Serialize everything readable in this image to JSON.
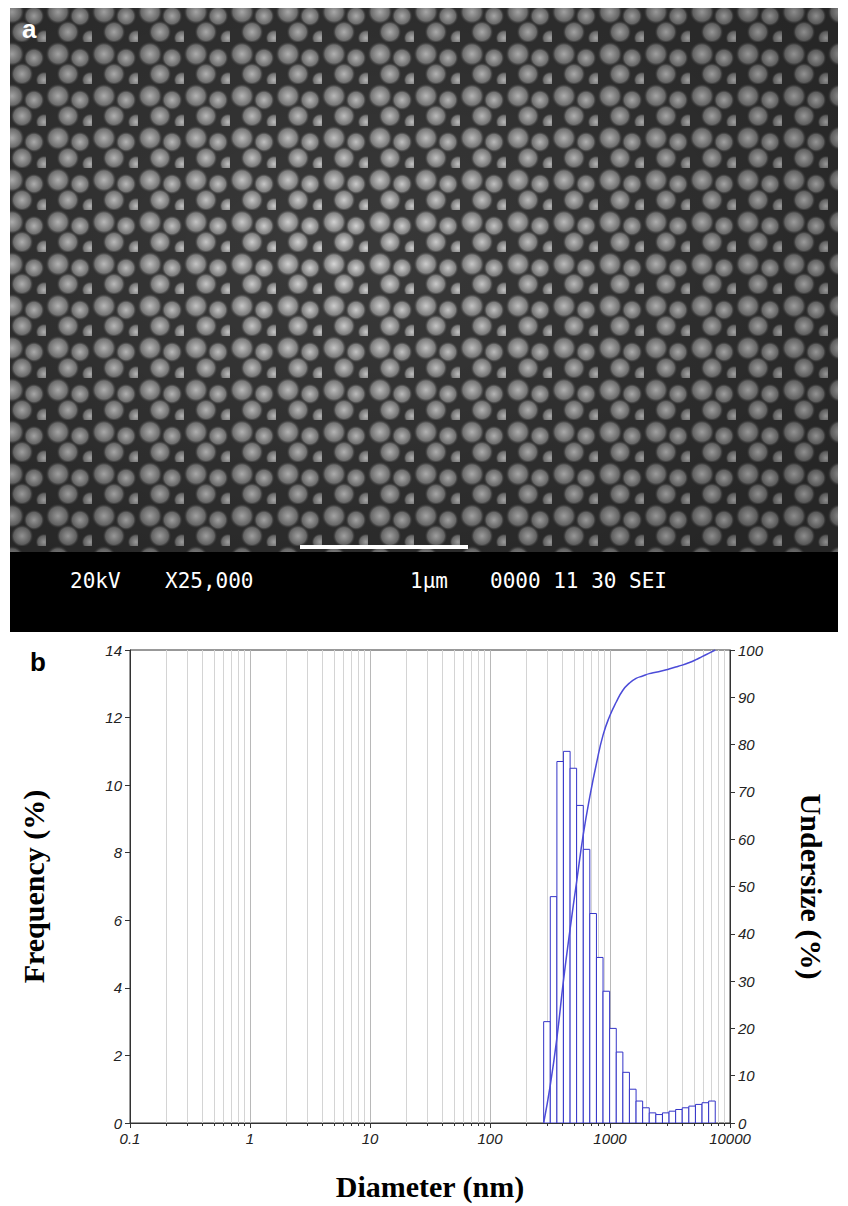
{
  "image_panel": {
    "panel_label": "a",
    "info_bar": [
      "20kV",
      "X25,000",
      "1μm",
      "0000 11 30 SEI"
    ]
  },
  "chart_data": {
    "type": "histogram",
    "panel_label": "b",
    "x_label": "Diameter (nm)",
    "y_label": "Frequency (%)",
    "y2_label": "Undersize (%)",
    "log": "x",
    "grid": true,
    "color": "#3434c8",
    "bins": [
      280,
      318,
      361,
      409,
      465,
      527,
      599,
      679,
      771,
      875,
      993,
      1128,
      1280,
      1452,
      1649,
      1871,
      2124,
      2410,
      2736,
      3105,
      3524,
      4000,
      4540,
      5153,
      5849,
      6638,
      7534
    ],
    "counts": [
      3.0,
      6.7,
      10.7,
      11.0,
      10.5,
      9.4,
      8.1,
      6.2,
      4.9,
      3.9,
      2.8,
      2.1,
      1.5,
      1.0,
      0.65,
      0.45,
      0.3,
      0.25,
      0.3,
      0.35,
      0.4,
      0.45,
      0.5,
      0.55,
      0.6,
      0.65
    ],
    "series": [
      {
        "type": "line",
        "axis": "y2",
        "color": "#4b4bd8",
        "x": [
          280,
          318,
          361,
          409,
          465,
          527,
          599,
          679,
          771,
          875,
          993,
          1128,
          1280,
          1452,
          1649,
          1871,
          2124,
          2410,
          2736,
          3105,
          3524,
          4000,
          4540,
          5153,
          5849,
          6638,
          7534
        ],
        "values": [
          0,
          8,
          18,
          30,
          41,
          51,
          61,
          69,
          76,
          82,
          86,
          89,
          91.5,
          93,
          94,
          94.5,
          95,
          95.3,
          95.6,
          96,
          96.4,
          96.8,
          97.3,
          97.9,
          98.6,
          99.3,
          100
        ]
      }
    ],
    "xlim": [
      0.1,
      10000
    ],
    "xticks": [
      0.1,
      1,
      10,
      100,
      1000,
      10000
    ],
    "ylim": [
      0,
      14
    ],
    "yticks": [
      0,
      2,
      4,
      6,
      8,
      10,
      12,
      14
    ],
    "y2lim": [
      0,
      100
    ],
    "y2ticks": [
      0,
      10,
      20,
      30,
      40,
      50,
      60,
      70,
      80,
      90,
      100
    ]
  }
}
